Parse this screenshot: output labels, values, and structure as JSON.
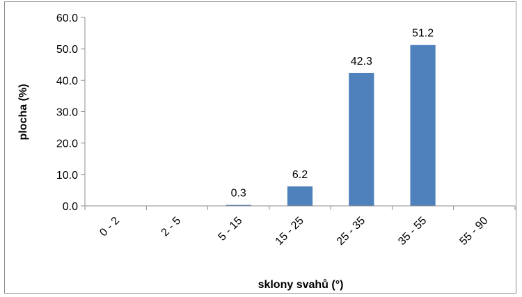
{
  "chart_data": {
    "type": "bar",
    "title": "",
    "xlabel": "sklony svahů (°)",
    "ylabel": "plocha (%)",
    "categories": [
      "0 - 2",
      "2 - 5",
      "5 - 15",
      "15 - 25",
      "25 - 35",
      "35 - 55",
      "55 - 90"
    ],
    "values": [
      0.0,
      0.0,
      0.3,
      6.2,
      42.3,
      51.2,
      0.0
    ],
    "data_labels": [
      "",
      "",
      "0.3",
      "6.2",
      "42.3",
      "51.2",
      ""
    ],
    "ylim": [
      0,
      60
    ],
    "yticks": [
      0,
      10,
      20,
      30,
      40,
      50,
      60
    ],
    "ytick_labels": [
      "0.0",
      "10.0",
      "20.0",
      "30.0",
      "40.0",
      "50.0",
      "60.0"
    ],
    "grid": false,
    "legend": "none",
    "bar_color": "#4f81bd"
  }
}
